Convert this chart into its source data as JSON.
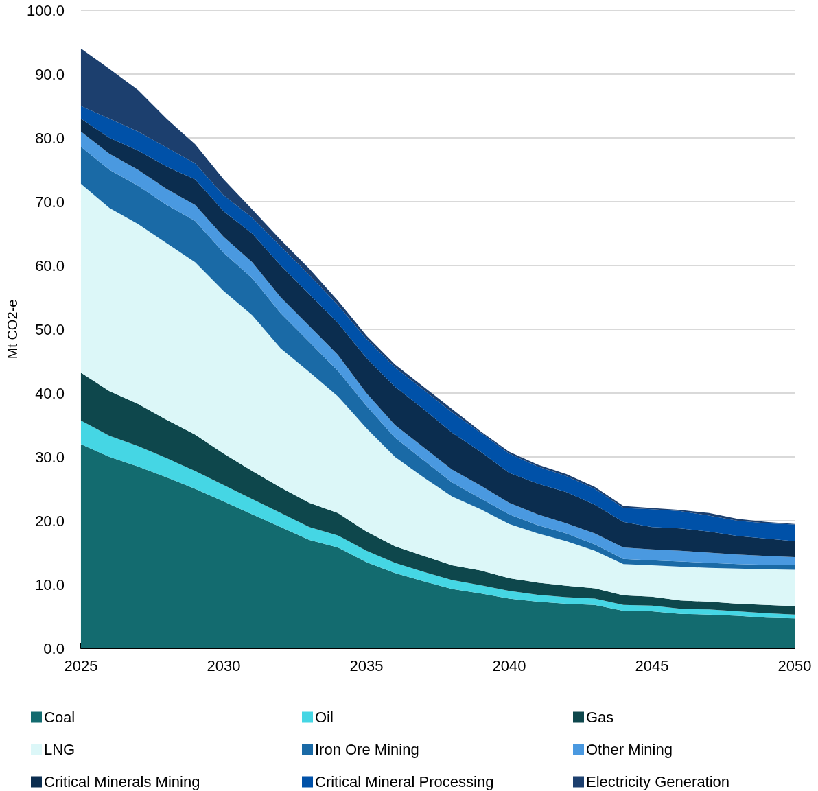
{
  "chart_data": {
    "type": "area",
    "stacked": true,
    "ylabel": "Mt CO2-e",
    "x": [
      2025,
      2026,
      2027,
      2028,
      2029,
      2030,
      2031,
      2032,
      2033,
      2034,
      2035,
      2036,
      2037,
      2038,
      2039,
      2040,
      2041,
      2042,
      2043,
      2044,
      2045,
      2046,
      2047,
      2048,
      2049,
      2050
    ],
    "xlim": [
      2025,
      2050
    ],
    "xticks": [
      2025,
      2030,
      2035,
      2040,
      2045,
      2050
    ],
    "ylim": [
      0,
      100
    ],
    "yticks": [
      {
        "value": 0,
        "label": "0.0"
      },
      {
        "value": 10,
        "label": "10.0"
      },
      {
        "value": 20,
        "label": "20.0"
      },
      {
        "value": 30,
        "label": "30.0"
      },
      {
        "value": 40,
        "label": "40.0"
      },
      {
        "value": 50,
        "label": "50.0"
      },
      {
        "value": 60,
        "label": "60.0"
      },
      {
        "value": 70,
        "label": "70.0"
      },
      {
        "value": 80,
        "label": "80.0"
      },
      {
        "value": 90,
        "label": "90.0"
      },
      {
        "value": 100,
        "label": "100.0"
      }
    ],
    "grid": "y",
    "legend": "bottom",
    "series": [
      {
        "name": "Coal",
        "color": "#136b6f",
        "values": [
          32.0,
          30.0,
          28.5,
          26.8,
          25.0,
          23.0,
          21.0,
          19.0,
          17.0,
          15.8,
          13.5,
          11.8,
          10.5,
          9.3,
          8.6,
          7.8,
          7.3,
          7.0,
          6.8,
          5.9,
          5.8,
          5.4,
          5.3,
          5.1,
          4.8,
          4.7
        ]
      },
      {
        "name": "Oil",
        "color": "#45d6e4",
        "values": [
          3.7,
          3.3,
          3.2,
          3.0,
          2.8,
          2.6,
          2.4,
          2.2,
          2.0,
          1.9,
          1.8,
          1.6,
          1.5,
          1.4,
          1.3,
          1.2,
          1.1,
          1.0,
          1.0,
          0.9,
          0.9,
          0.8,
          0.8,
          0.7,
          0.7,
          0.6
        ]
      },
      {
        "name": "Gas",
        "color": "#0e474c",
        "values": [
          7.5,
          7.0,
          6.6,
          6.0,
          5.7,
          4.9,
          4.4,
          4.0,
          3.8,
          3.5,
          3.0,
          2.6,
          2.5,
          2.3,
          2.3,
          2.0,
          1.9,
          1.8,
          1.6,
          1.5,
          1.4,
          1.3,
          1.2,
          1.2,
          1.3,
          1.3
        ]
      },
      {
        "name": "LNG",
        "color": "#dcf7f8",
        "values": [
          29.6,
          28.7,
          28.2,
          27.7,
          27.0,
          25.5,
          24.4,
          21.8,
          20.5,
          18.3,
          16.2,
          14.0,
          12.3,
          10.8,
          9.6,
          8.5,
          7.7,
          7.0,
          5.9,
          4.9,
          4.9,
          5.3,
          5.3,
          5.5,
          5.6,
          5.7
        ]
      },
      {
        "name": "Iron Ore Mining",
        "color": "#1a6aa6",
        "values": [
          5.8,
          6.0,
          6.0,
          6.0,
          6.5,
          6.0,
          5.8,
          5.5,
          4.7,
          4.0,
          3.5,
          3.0,
          2.7,
          2.2,
          1.7,
          1.5,
          1.3,
          1.2,
          1.0,
          0.8,
          0.8,
          0.8,
          0.8,
          0.7,
          0.7,
          0.7
        ]
      },
      {
        "name": "Other Mining",
        "color": "#4a99e0",
        "values": [
          2.4,
          2.5,
          2.5,
          2.5,
          2.5,
          2.5,
          2.5,
          2.5,
          2.5,
          2.5,
          2.0,
          2.0,
          2.0,
          2.0,
          2.0,
          1.8,
          1.7,
          1.6,
          1.7,
          1.8,
          1.7,
          1.7,
          1.6,
          1.5,
          1.4,
          1.3
        ]
      },
      {
        "name": "Critical Minerals Mining",
        "color": "#0b2d4f",
        "values": [
          2.0,
          2.5,
          3.0,
          3.5,
          4.0,
          4.0,
          4.5,
          5.0,
          5.0,
          5.0,
          5.5,
          6.0,
          6.0,
          5.8,
          5.3,
          4.7,
          4.8,
          4.9,
          4.5,
          4.0,
          3.5,
          3.5,
          3.3,
          2.9,
          2.7,
          2.5
        ]
      },
      {
        "name": "Critical Mineral Processing",
        "color": "#0051a8",
        "values": [
          2.0,
          3.0,
          3.0,
          3.0,
          2.5,
          2.5,
          2.5,
          3.0,
          3.0,
          2.8,
          3.0,
          3.0,
          3.0,
          3.2,
          3.0,
          3.0,
          2.7,
          2.5,
          2.5,
          2.2,
          2.8,
          2.7,
          2.5,
          2.4,
          2.4,
          2.6
        ]
      },
      {
        "name": "Electricity Generation",
        "color": "#1c3f6e",
        "values": [
          9.0,
          7.8,
          6.5,
          4.5,
          3.0,
          2.5,
          1.3,
          1.0,
          1.0,
          0.7,
          0.5,
          0.5,
          0.5,
          0.5,
          0.2,
          0.3,
          0.3,
          0.3,
          0.3,
          0.3,
          0.2,
          0.2,
          0.4,
          0.3,
          0.2,
          0.1
        ]
      }
    ]
  }
}
